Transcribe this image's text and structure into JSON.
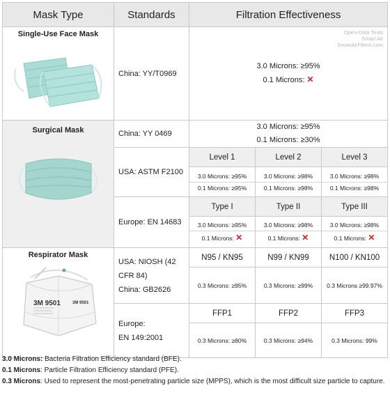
{
  "header": {
    "col_mask_type": "Mask Type",
    "col_standards": "Standards",
    "col_effectiveness": "Filtration Effectiveness"
  },
  "watermark": [
    "Open-Data Tests",
    "Smart Air",
    "SmartAirFilters.com"
  ],
  "single_use": {
    "title": "Single-Use Face Mask",
    "standard_region": "China:",
    "standard_code": "YY/T0969",
    "line1": "3.0 Microns: ≥95%",
    "line2": "0.1 Microns:",
    "line2_mark": "✕"
  },
  "surgical": {
    "title": "Surgical Mask",
    "china": {
      "region": "China:",
      "code": "YY 0469",
      "line1": "3.0 Microns: ≥95%",
      "line2": "0.1 Microns: ≥30%"
    },
    "usa": {
      "region": "USA:",
      "code": "ASTM F2100",
      "levels": [
        {
          "name": "Level 1",
          "l1": "3.0 Microns: ≥95%",
          "l2": "0.1 Microns: ≥95%"
        },
        {
          "name": "Level 2",
          "l1": "3.0 Microns: ≥98%",
          "l2": "0.1 Microns: ≥98%"
        },
        {
          "name": "Level 3",
          "l1": "3.0 Microns: ≥98%",
          "l2": "0.1 Microns: ≥98%"
        }
      ]
    },
    "europe": {
      "region": "Europe:",
      "code": "EN 14683",
      "types": [
        {
          "name": "Type I",
          "l1": "3.0 Microns: ≥95%",
          "l2": "0.1 Microns:"
        },
        {
          "name": "Type II",
          "l1": "3.0 Microns: ≥98%",
          "l2": "0.1 Microns:"
        },
        {
          "name": "Type III",
          "l1": "3.0 Microns: ≥98%",
          "l2": "0.1 Microns:"
        }
      ],
      "mark": "✕"
    }
  },
  "respirator": {
    "title": "Respirator Mask",
    "mask_label_big": "3M 9501",
    "mask_label_side": "3M 9501",
    "usa_china": {
      "usa_region": "USA:",
      "usa_code_a": "NIOSH (42",
      "usa_code_b": "CFR 84)",
      "china_region": "China:",
      "china_code": "GB2626",
      "classes": [
        {
          "name": "N95 / KN95",
          "value": "0.3 Microns: ≥95%"
        },
        {
          "name": "N99 / KN99",
          "value": "0.3 Microns: ≥99%"
        },
        {
          "name": "N100 / KN100",
          "value": "0.3 Microns ≥99.97%"
        }
      ]
    },
    "europe": {
      "region": "Europe:",
      "code": "EN 149:2001",
      "classes": [
        {
          "name": "FFP1",
          "value": "0.3 Microns: ≥80%"
        },
        {
          "name": "FFP2",
          "value": "0.3 Microns: ≥94%"
        },
        {
          "name": "FFP3",
          "value": "0.3 Microns: 99%"
        }
      ]
    }
  },
  "notes": [
    {
      "key": "3.0 Microns:",
      "text": " Bacteria Filtration Efficiency standard (BFE)."
    },
    {
      "key": "0.1 Microns",
      "text": ": Particle Filtration Efficiency standard (PFE)."
    },
    {
      "key": "0.3 Microns",
      "text": ": Used to represent the most-penetrating particle size (MPPS), which is the most difficult size particle to capture."
    }
  ]
}
